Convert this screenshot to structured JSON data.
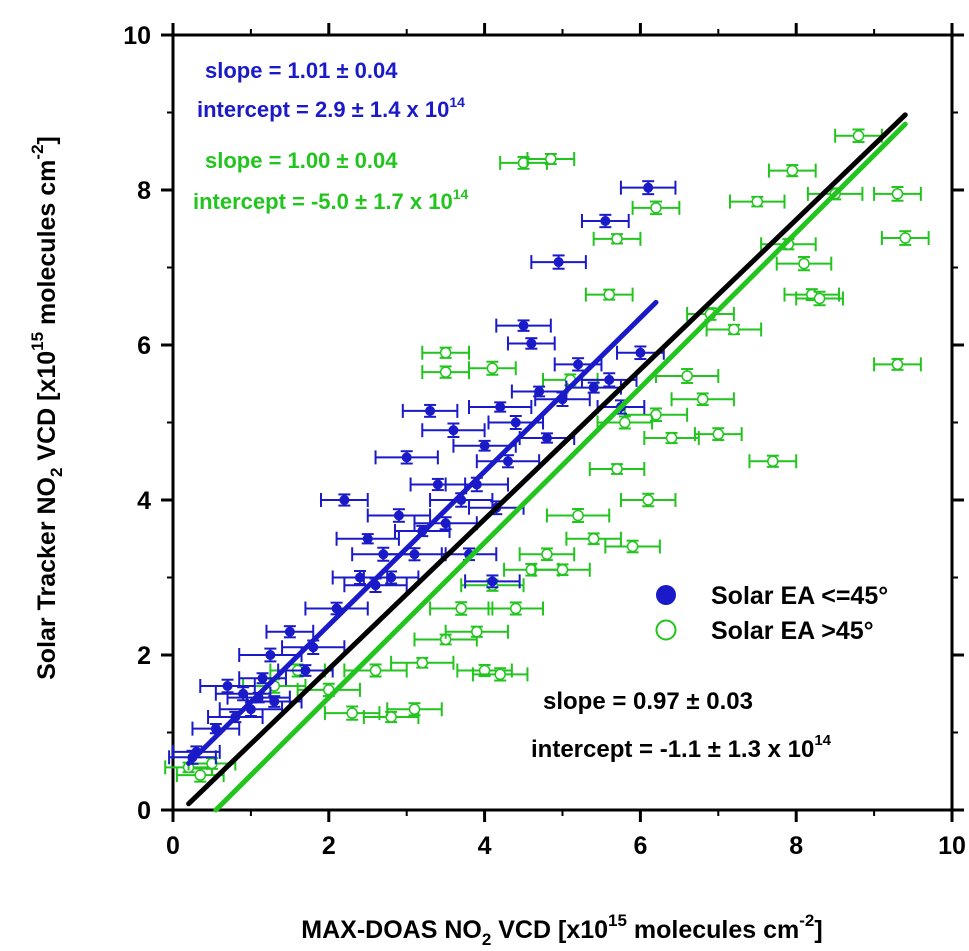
{
  "chart_data": {
    "type": "scatter",
    "xlabel": {
      "main": "MAX-DOAS NO",
      "sub": "2",
      "rest": " VCD [x10",
      "sup1": "15",
      "rest2": " molecules cm",
      "sup2": "-2",
      "end": "]"
    },
    "ylabel": {
      "main": "Solar Tracker NO",
      "sub": "2",
      "rest": " VCD [x10",
      "sup1": "15",
      "rest2": " molecules cm",
      "sup2": "-2",
      "end": "]"
    },
    "xlim": [
      0,
      10
    ],
    "ylim": [
      0,
      10
    ],
    "xticks": [
      "0",
      "2",
      "4",
      "6",
      "8",
      "10"
    ],
    "yticks": [
      "0",
      "2",
      "4",
      "6",
      "8",
      "10"
    ],
    "grid": false,
    "legend_position": "center-right",
    "colors": {
      "blue": "#1a1ac8",
      "green": "#22c41e",
      "black": "#000000"
    },
    "series": [
      {
        "name": "Solar EA <=45°",
        "marker": "filled-circle",
        "color": "#1a1ac8",
        "points": [
          [
            0.25,
            0.68,
            0.3
          ],
          [
            0.3,
            0.75,
            0.3
          ],
          [
            0.55,
            1.05,
            0.3
          ],
          [
            0.7,
            1.6,
            0.35
          ],
          [
            0.8,
            1.2,
            0.35
          ],
          [
            0.9,
            1.5,
            0.35
          ],
          [
            1.0,
            1.3,
            0.4
          ],
          [
            1.1,
            1.45,
            0.4
          ],
          [
            1.15,
            1.7,
            0.3
          ],
          [
            1.25,
            2.0,
            0.4
          ],
          [
            1.3,
            1.4,
            0.35
          ],
          [
            1.5,
            2.3,
            0.3
          ],
          [
            1.7,
            1.8,
            0.35
          ],
          [
            1.8,
            2.1,
            0.4
          ],
          [
            2.1,
            2.6,
            0.4
          ],
          [
            2.2,
            4.0,
            0.3
          ],
          [
            2.4,
            3.0,
            0.35
          ],
          [
            2.5,
            3.5,
            0.4
          ],
          [
            2.6,
            2.9,
            0.4
          ],
          [
            2.7,
            3.3,
            0.4
          ],
          [
            2.8,
            3.0,
            0.35
          ],
          [
            2.9,
            3.8,
            0.4
          ],
          [
            3.0,
            4.55,
            0.4
          ],
          [
            3.1,
            3.3,
            0.4
          ],
          [
            3.2,
            3.6,
            0.35
          ],
          [
            3.3,
            5.15,
            0.35
          ],
          [
            3.4,
            4.2,
            0.35
          ],
          [
            3.5,
            3.7,
            0.4
          ],
          [
            3.6,
            4.9,
            0.4
          ],
          [
            3.7,
            4.0,
            0.4
          ],
          [
            3.8,
            3.3,
            0.35
          ],
          [
            3.9,
            4.2,
            0.4
          ],
          [
            4.0,
            4.7,
            0.4
          ],
          [
            4.1,
            2.95,
            0.35
          ],
          [
            4.15,
            3.9,
            0.35
          ],
          [
            4.2,
            5.2,
            0.4
          ],
          [
            4.3,
            4.5,
            0.4
          ],
          [
            4.4,
            5.0,
            0.35
          ],
          [
            4.5,
            6.25,
            0.35
          ],
          [
            4.6,
            6.02,
            0.3
          ],
          [
            4.7,
            5.4,
            0.35
          ],
          [
            4.8,
            4.8,
            0.35
          ],
          [
            5.0,
            5.3,
            0.35
          ],
          [
            5.2,
            5.75,
            0.3
          ],
          [
            5.4,
            5.45,
            0.35
          ],
          [
            5.6,
            5.55,
            0.35
          ],
          [
            5.75,
            5.2,
            0.3
          ],
          [
            6.0,
            5.9,
            0.3
          ],
          [
            4.95,
            7.07,
            0.35
          ],
          [
            5.55,
            7.6,
            0.3
          ],
          [
            6.1,
            8.03,
            0.35
          ]
        ]
      },
      {
        "name": "Solar EA >45°",
        "marker": "open-circle",
        "color": "#22c41e",
        "points": [
          [
            0.2,
            0.55,
            0.3
          ],
          [
            0.35,
            0.45,
            0.3
          ],
          [
            0.5,
            0.6,
            0.3
          ],
          [
            1.3,
            1.6,
            0.4
          ],
          [
            1.6,
            1.8,
            0.35
          ],
          [
            2.0,
            1.55,
            0.4
          ],
          [
            2.3,
            1.25,
            0.35
          ],
          [
            2.6,
            1.8,
            0.4
          ],
          [
            2.8,
            1.2,
            0.35
          ],
          [
            3.1,
            1.3,
            0.35
          ],
          [
            3.2,
            1.9,
            0.4
          ],
          [
            3.5,
            2.2,
            0.4
          ],
          [
            3.7,
            2.6,
            0.4
          ],
          [
            3.9,
            2.3,
            0.4
          ],
          [
            4.0,
            1.8,
            0.35
          ],
          [
            4.1,
            2.9,
            0.4
          ],
          [
            4.2,
            1.75,
            0.35
          ],
          [
            4.4,
            2.6,
            0.35
          ],
          [
            4.6,
            3.1,
            0.35
          ],
          [
            4.8,
            3.3,
            0.35
          ],
          [
            5.0,
            3.1,
            0.35
          ],
          [
            5.2,
            3.8,
            0.4
          ],
          [
            5.4,
            3.5,
            0.35
          ],
          [
            5.7,
            4.4,
            0.35
          ],
          [
            5.9,
            3.4,
            0.35
          ],
          [
            6.1,
            4.0,
            0.35
          ],
          [
            6.2,
            5.1,
            0.4
          ],
          [
            6.4,
            4.8,
            0.35
          ],
          [
            6.6,
            5.6,
            0.4
          ],
          [
            6.8,
            5.3,
            0.4
          ],
          [
            7.0,
            4.85,
            0.3
          ],
          [
            7.2,
            6.2,
            0.35
          ],
          [
            7.5,
            7.85,
            0.35
          ],
          [
            7.7,
            4.5,
            0.3
          ],
          [
            7.9,
            7.3,
            0.35
          ],
          [
            7.95,
            8.25,
            0.3
          ],
          [
            8.1,
            7.05,
            0.35
          ],
          [
            8.2,
            6.65,
            0.35
          ],
          [
            8.3,
            6.6,
            0.3
          ],
          [
            8.5,
            7.95,
            0.35
          ],
          [
            8.8,
            8.7,
            0.3
          ],
          [
            9.3,
            7.95,
            0.3
          ],
          [
            9.4,
            7.38,
            0.3
          ],
          [
            9.3,
            5.75,
            0.3
          ],
          [
            4.5,
            8.35,
            0.3
          ],
          [
            4.85,
            8.4,
            0.3
          ],
          [
            6.2,
            7.77,
            0.3
          ],
          [
            5.7,
            7.37,
            0.3
          ],
          [
            5.6,
            6.65,
            0.3
          ],
          [
            3.5,
            5.9,
            0.3
          ],
          [
            3.5,
            5.65,
            0.3
          ],
          [
            4.1,
            5.7,
            0.3
          ],
          [
            5.1,
            5.55,
            0.35
          ],
          [
            5.8,
            5.0,
            0.35
          ],
          [
            6.9,
            6.4,
            0.3
          ]
        ]
      },
      {
        "name": "Fit (blue)",
        "type": "line",
        "color": "#1a1ac8",
        "x": [
          0.2,
          6.2
        ],
        "y": [
          0.6,
          6.55
        ]
      },
      {
        "name": "Fit (green)",
        "type": "line",
        "color": "#22c41e",
        "x": [
          0.55,
          9.4
        ],
        "y": [
          0.0,
          8.85
        ]
      },
      {
        "name": "Fit (all)",
        "type": "line",
        "color": "#000000",
        "x": [
          0.2,
          9.4
        ],
        "y": [
          0.08,
          8.97
        ]
      }
    ],
    "annotations": {
      "blue_slope": "slope = 1.01 ± 0.04",
      "blue_intercept": "intercept = 2.9 ± 1.4 x 10",
      "blue_intercept_exp": "14",
      "green_slope": "slope = 1.00 ± 0.04",
      "green_intercept": "intercept = -5.0 ± 1.7 x 10",
      "green_intercept_exp": "14",
      "all_slope": "slope = 0.97 ± 0.03",
      "all_intercept": "intercept = -1.1 ± 1.3 x 10",
      "all_intercept_exp": "14"
    },
    "legend": [
      {
        "label": "Solar EA <=45°",
        "marker": "filled-circle",
        "color": "#1a1ac8"
      },
      {
        "label": "Solar EA >45°",
        "marker": "open-circle",
        "color": "#22c41e"
      }
    ]
  }
}
